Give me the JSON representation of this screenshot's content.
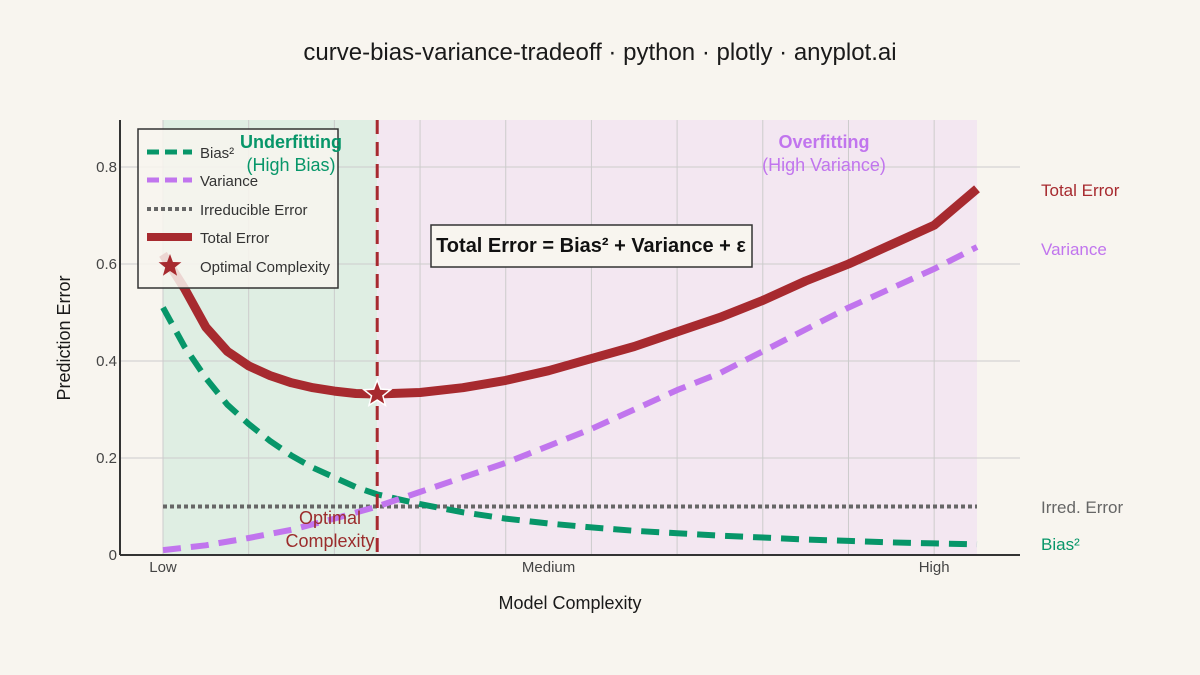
{
  "chart_data": {
    "type": "line",
    "title": "curve-bias-variance-tradeoff · python · plotly · anyplot.ai",
    "xlabel": "Model Complexity",
    "ylabel": "Prediction Error",
    "xlim": [
      0,
      10
    ],
    "ylim": [
      0,
      0.9
    ],
    "x_ticks": [
      {
        "value": 0.5,
        "label": "Low"
      },
      {
        "value": 5,
        "label": "Medium"
      },
      {
        "value": 9.5,
        "label": "High"
      }
    ],
    "y_ticks": [
      {
        "value": 0,
        "label": "0"
      },
      {
        "value": 0.2,
        "label": "0.2"
      },
      {
        "value": 0.4,
        "label": "0.4"
      },
      {
        "value": 0.6,
        "label": "0.6"
      },
      {
        "value": 0.8,
        "label": "0.8"
      }
    ],
    "x_grid": [
      0.5,
      1.5,
      2.5,
      3.5,
      4.5,
      5.5,
      6.5,
      7.5,
      8.5,
      9.5
    ],
    "grid": true,
    "legend_position": "top-left",
    "series": [
      {
        "name": "Bias²",
        "end_label": "Bias²",
        "color": "#079669",
        "style": "dashed",
        "x": [
          0.5,
          0.75,
          1,
          1.25,
          1.5,
          1.75,
          2,
          2.25,
          2.5,
          2.75,
          3,
          3.5,
          4,
          4.5,
          5,
          5.5,
          6,
          6.5,
          7,
          7.5,
          8,
          8.5,
          9,
          9.5,
          10
        ],
        "y": [
          0.51,
          0.43,
          0.365,
          0.31,
          0.27,
          0.235,
          0.205,
          0.18,
          0.16,
          0.14,
          0.125,
          0.105,
          0.088,
          0.075,
          0.065,
          0.057,
          0.05,
          0.045,
          0.04,
          0.036,
          0.032,
          0.029,
          0.026,
          0.024,
          0.022
        ]
      },
      {
        "name": "Variance",
        "end_label": "Variance",
        "color": "#c175ee",
        "style": "dashed",
        "x": [
          0.5,
          1,
          1.5,
          2,
          2.5,
          3,
          3.5,
          4,
          4.5,
          5,
          5.5,
          6,
          6.5,
          7,
          7.5,
          8,
          8.5,
          9,
          9.5,
          10
        ],
        "y": [
          0.01,
          0.02,
          0.035,
          0.052,
          0.075,
          0.1,
          0.13,
          0.16,
          0.19,
          0.225,
          0.26,
          0.3,
          0.34,
          0.375,
          0.42,
          0.465,
          0.51,
          0.55,
          0.59,
          0.635
        ]
      },
      {
        "name": "Irreducible Error",
        "end_label": "Irred. Error",
        "color": "#666666",
        "style": "dotted",
        "x": [
          0.5,
          10
        ],
        "y": [
          0.1,
          0.1
        ]
      },
      {
        "name": "Total Error",
        "end_label": "Total Error",
        "color": "#a72a2f",
        "style": "solid",
        "x": [
          0.5,
          0.75,
          1,
          1.25,
          1.5,
          1.75,
          2,
          2.25,
          2.5,
          2.75,
          3,
          3.5,
          4,
          4.5,
          5,
          5.5,
          6,
          6.5,
          7,
          7.5,
          8,
          8.5,
          9,
          9.5,
          10
        ],
        "y": [
          0.62,
          0.55,
          0.47,
          0.42,
          0.39,
          0.37,
          0.355,
          0.345,
          0.338,
          0.333,
          0.332,
          0.335,
          0.345,
          0.36,
          0.38,
          0.405,
          0.43,
          0.46,
          0.49,
          0.525,
          0.565,
          0.6,
          0.64,
          0.68,
          0.755
        ]
      }
    ],
    "optimal_point": {
      "name": "Optimal Complexity",
      "x": 3,
      "y": 0.332,
      "color": "#a72a2f"
    },
    "regions": [
      {
        "from": 0.5,
        "to": 3,
        "color": "#dfeee3",
        "title": "Underfitting",
        "subtitle": "(High Bias)",
        "text_color": "#079669"
      },
      {
        "from": 3,
        "to": 10,
        "color": "#f3e7f1",
        "title": "Overfitting",
        "subtitle": "(High Variance)",
        "text_color": "#c175ee"
      }
    ],
    "annotations": {
      "optimal_label_line1": "Optimal",
      "optimal_label_line2": "Complexity",
      "equation": "Total Error = Bias² + Variance + ε"
    },
    "colors": {
      "background": "#f8f5ef",
      "optimal_line": "#a72a2f",
      "grid": "#cccccc",
      "axis": "#333333"
    }
  }
}
